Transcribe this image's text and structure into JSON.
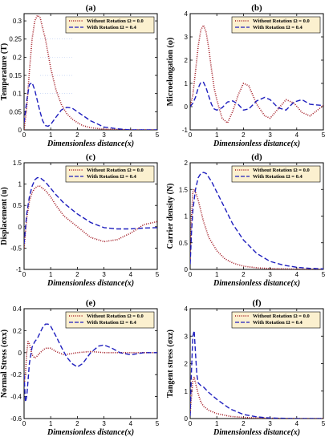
{
  "colors": {
    "without_rotation": "#a0141e",
    "with_rotation": "#1e1ebe",
    "legend_bg": "#fbf0cf",
    "grid_dots": "#c878dc"
  },
  "chart_data": [
    {
      "panel": "(a)",
      "type": "line",
      "xlabel": "Dimensionless distance(x)",
      "ylabel": "Temperature (T)",
      "xlim": [
        0,
        5
      ],
      "ylim": [
        0,
        0.32
      ],
      "xticks": [
        0,
        1,
        2,
        3,
        4,
        5
      ],
      "yticks": [
        0,
        0.05,
        0.1,
        0.15,
        0.2,
        0.25,
        0.3
      ],
      "ytick_labels": [
        "0",
        "0.05",
        "0.1",
        "0.15",
        "0.2",
        "0.25",
        "0.3"
      ],
      "legend_position": "top-right",
      "series": [
        {
          "name": "Without Rotation Ω = 0.0",
          "style": "dotted",
          "x": [
            0,
            0.1,
            0.2,
            0.3,
            0.4,
            0.5,
            0.6,
            0.7,
            0.8,
            0.9,
            1.0,
            1.2,
            1.4,
            1.6,
            1.8,
            2.0,
            2.2,
            2.5,
            3.0,
            3.5,
            4.0,
            5.0
          ],
          "y": [
            0,
            0.06,
            0.16,
            0.25,
            0.3,
            0.315,
            0.31,
            0.28,
            0.25,
            0.21,
            0.17,
            0.11,
            0.07,
            0.045,
            0.03,
            0.02,
            0.012,
            0.006,
            0.002,
            0.001,
            0,
            0
          ]
        },
        {
          "name": "With Rotation Ω = 0.4",
          "style": "dashed",
          "x": [
            0,
            0.1,
            0.2,
            0.3,
            0.4,
            0.5,
            0.6,
            0.7,
            0.8,
            0.9,
            1.0,
            1.2,
            1.4,
            1.6,
            1.8,
            2.0,
            2.2,
            2.5,
            3.0,
            3.5,
            4.0,
            5.0
          ],
          "y": [
            0.02,
            0.08,
            0.125,
            0.13,
            0.11,
            0.08,
            0.05,
            0.025,
            0.012,
            0.01,
            0.015,
            0.035,
            0.055,
            0.062,
            0.06,
            0.05,
            0.04,
            0.025,
            0.008,
            0.003,
            0,
            0
          ]
        }
      ]
    },
    {
      "panel": "(b)",
      "type": "line",
      "xlabel": "Dimensionless distance(x)",
      "ylabel": "Microelongation (φ)",
      "xlim": [
        0,
        5
      ],
      "ylim": [
        -1,
        4
      ],
      "xticks": [
        0,
        1,
        2,
        3,
        4,
        5
      ],
      "yticks": [
        -1,
        0,
        1,
        2,
        3,
        4
      ],
      "ytick_labels": [
        "-1",
        "0",
        "1",
        "2",
        "3",
        "4"
      ],
      "legend_position": "top-right",
      "series": [
        {
          "name": "Without Rotation Ω = 0.0",
          "style": "dotted",
          "x": [
            0,
            0.1,
            0.2,
            0.3,
            0.4,
            0.5,
            0.6,
            0.7,
            0.8,
            0.9,
            1.0,
            1.2,
            1.4,
            1.6,
            1.8,
            2.0,
            2.2,
            2.5,
            2.8,
            3.0,
            3.3,
            3.6,
            3.9,
            4.2,
            4.5,
            5.0
          ],
          "y": [
            0,
            0.5,
            1.5,
            2.6,
            3.3,
            3.5,
            3.2,
            2.5,
            1.6,
            0.8,
            0.3,
            -0.5,
            -0.7,
            -0.2,
            0.5,
            1.0,
            0.9,
            0.1,
            -0.4,
            -0.5,
            -0.1,
            0.3,
            0.15,
            -0.25,
            -0.4,
            0.05
          ]
        },
        {
          "name": "With Rotation Ω = 0.4",
          "style": "dashed",
          "x": [
            0,
            0.1,
            0.2,
            0.3,
            0.4,
            0.5,
            0.6,
            0.7,
            0.8,
            0.9,
            1.0,
            1.2,
            1.4,
            1.6,
            1.8,
            2.0,
            2.2,
            2.5,
            2.8,
            3.0,
            3.3,
            3.6,
            3.9,
            4.2,
            4.5,
            5.0
          ],
          "y": [
            0,
            0.15,
            0.4,
            0.8,
            1.05,
            1.05,
            0.8,
            0.45,
            0.1,
            -0.1,
            -0.15,
            -0.05,
            0.2,
            0.25,
            0.1,
            -0.15,
            -0.1,
            0.25,
            0.4,
            0.3,
            -0.05,
            -0.15,
            0.2,
            0.3,
            0.1,
            0.05
          ]
        }
      ]
    },
    {
      "panel": "(c)",
      "type": "line",
      "xlabel": "Dimensionless distance(x)",
      "ylabel": "Displacement (u)",
      "xlim": [
        0,
        5
      ],
      "ylim": [
        -1,
        1.5
      ],
      "xticks": [
        0,
        1,
        2,
        3,
        4,
        5
      ],
      "yticks": [
        -1,
        -0.5,
        0,
        0.5,
        1,
        1.5
      ],
      "ytick_labels": [
        "-1",
        "-0.5",
        "0",
        "0.5",
        "1",
        "1.5"
      ],
      "legend_position": "top-right",
      "series": [
        {
          "name": "Without Rotation Ω = 0.0",
          "style": "dotted",
          "x": [
            0,
            0.1,
            0.2,
            0.3,
            0.4,
            0.5,
            0.6,
            0.8,
            1.0,
            1.2,
            1.5,
            2.0,
            2.5,
            3.0,
            3.5,
            4.0,
            4.5,
            5.0
          ],
          "y": [
            -0.5,
            0.2,
            0.6,
            0.8,
            0.9,
            0.95,
            0.95,
            0.85,
            0.7,
            0.5,
            0.25,
            0,
            -0.25,
            -0.35,
            -0.3,
            -0.15,
            0.05,
            0.12
          ]
        },
        {
          "name": "With Rotation Ω = 0.4",
          "style": "dashed",
          "x": [
            0,
            0.1,
            0.2,
            0.3,
            0.4,
            0.5,
            0.6,
            0.8,
            1.0,
            1.2,
            1.5,
            2.0,
            2.5,
            3.0,
            3.5,
            4.0,
            4.5,
            5.0
          ],
          "y": [
            -0.4,
            0.3,
            0.7,
            0.95,
            1.1,
            1.15,
            1.15,
            1.05,
            0.9,
            0.75,
            0.55,
            0.3,
            0.1,
            -0.02,
            -0.05,
            -0.05,
            -0.03,
            -0.02
          ]
        }
      ]
    },
    {
      "panel": "(d)",
      "type": "line",
      "xlabel": "Dimensionless distance(x)",
      "ylabel": "Carrier density (N)",
      "xlim": [
        0,
        5
      ],
      "ylim": [
        0,
        2
      ],
      "xticks": [
        0,
        1,
        2,
        3,
        4,
        5
      ],
      "yticks": [
        0,
        0.5,
        1,
        1.5,
        2
      ],
      "ytick_labels": [
        "0",
        "0.5",
        "1",
        "1.5",
        "2"
      ],
      "legend_position": "top-right",
      "series": [
        {
          "name": "Without Rotation Ω = 0.0",
          "style": "dotted",
          "x": [
            0,
            0.05,
            0.1,
            0.15,
            0.2,
            0.3,
            0.4,
            0.5,
            0.7,
            1.0,
            1.3,
            1.6,
            2.0,
            2.5,
            3.0,
            4.0,
            5.0
          ],
          "y": [
            0.2,
            1.0,
            1.45,
            1.5,
            1.45,
            1.3,
            1.1,
            0.9,
            0.6,
            0.35,
            0.2,
            0.12,
            0.06,
            0.03,
            0.015,
            0.005,
            0
          ]
        },
        {
          "name": "With Rotation Ω = 0.4",
          "style": "dashed",
          "x": [
            0,
            0.05,
            0.1,
            0.2,
            0.3,
            0.4,
            0.5,
            0.6,
            0.8,
            1.0,
            1.3,
            1.6,
            2.0,
            2.5,
            3.0,
            3.5,
            4.0,
            4.5,
            5.0
          ],
          "y": [
            0.1,
            0.7,
            1.1,
            1.5,
            1.72,
            1.8,
            1.82,
            1.8,
            1.65,
            1.45,
            1.15,
            0.85,
            0.55,
            0.3,
            0.15,
            0.08,
            0.04,
            0.02,
            0.01
          ]
        }
      ]
    },
    {
      "panel": "(e)",
      "type": "line",
      "xlabel": "Dimensionless distance(x)",
      "ylabel": "Normal Stress (σxx)",
      "xlim": [
        0,
        5
      ],
      "ylim": [
        -0.6,
        0.4
      ],
      "xticks": [
        0,
        1,
        2,
        3,
        4,
        5
      ],
      "yticks": [
        -0.6,
        -0.4,
        -0.2,
        0,
        0.2,
        0.4
      ],
      "ytick_labels": [
        "-0.6",
        "-0.4",
        "-0.2",
        "0",
        "0.2",
        "0.4"
      ],
      "legend_position": "top-right",
      "series": [
        {
          "name": "Without Rotation Ω = 0.0",
          "style": "dotted",
          "x": [
            0,
            0.05,
            0.1,
            0.15,
            0.2,
            0.25,
            0.3,
            0.4,
            0.5,
            0.6,
            0.8,
            1.0,
            1.2,
            1.5,
            2.0,
            2.5,
            3.0,
            4.0,
            5.0
          ],
          "y": [
            -0.3,
            -0.2,
            0,
            0.1,
            0.08,
            0.03,
            -0.02,
            -0.05,
            -0.03,
            0,
            0.04,
            0.04,
            0.01,
            -0.02,
            0,
            0.01,
            0,
            0,
            0
          ]
        },
        {
          "name": "With Rotation Ω = 0.4",
          "style": "dashed",
          "x": [
            0,
            0.05,
            0.1,
            0.15,
            0.2,
            0.3,
            0.4,
            0.5,
            0.6,
            0.7,
            0.8,
            0.9,
            1.0,
            1.2,
            1.4,
            1.6,
            1.8,
            2.0,
            2.2,
            2.5,
            2.8,
            3.0,
            3.3,
            3.6,
            4.0,
            4.5,
            5.0
          ],
          "y": [
            -0.2,
            -0.45,
            -0.4,
            -0.25,
            -0.1,
            0.05,
            0.1,
            0.13,
            0.18,
            0.23,
            0.26,
            0.26,
            0.24,
            0.15,
            0.05,
            -0.04,
            -0.1,
            -0.13,
            -0.1,
            0,
            0.06,
            0.07,
            0.04,
            0,
            -0.02,
            0,
            0
          ]
        }
      ]
    },
    {
      "panel": "(f)",
      "type": "line",
      "xlabel": "Dimensionless distance(x)",
      "ylabel": "Tangent stress (σxz)",
      "xlim": [
        0,
        5
      ],
      "ylim": [
        0,
        4
      ],
      "xticks": [
        0,
        1,
        2,
        3,
        4,
        5
      ],
      "yticks": [
        0,
        1,
        2,
        3,
        4
      ],
      "ytick_labels": [
        "0",
        "1",
        "2",
        "3",
        "4"
      ],
      "legend_position": "top-right",
      "series": [
        {
          "name": "Without Rotation Ω = 0.0",
          "style": "dotted",
          "x": [
            0,
            0.05,
            0.1,
            0.15,
            0.2,
            0.3,
            0.4,
            0.5,
            0.7,
            1.0,
            1.5,
            2.0,
            3.0,
            4.0,
            5.0
          ],
          "y": [
            0.2,
            0.8,
            1.4,
            1.5,
            1.3,
            0.9,
            0.6,
            0.45,
            0.3,
            0.18,
            0.08,
            0.04,
            0.01,
            0,
            0
          ]
        },
        {
          "name": "With Rotation Ω = 0.4",
          "style": "dashed",
          "x": [
            0,
            0.05,
            0.1,
            0.15,
            0.2,
            0.25,
            0.3,
            0.4,
            0.5,
            0.7,
            1.0,
            1.5,
            2.0,
            2.5,
            3.0,
            4.0,
            5.0
          ],
          "y": [
            0.1,
            1.8,
            3.0,
            3.2,
            2.4,
            1.6,
            1.3,
            1.2,
            1.15,
            0.95,
            0.7,
            0.35,
            0.15,
            0.06,
            0.02,
            0,
            0
          ]
        }
      ]
    }
  ]
}
